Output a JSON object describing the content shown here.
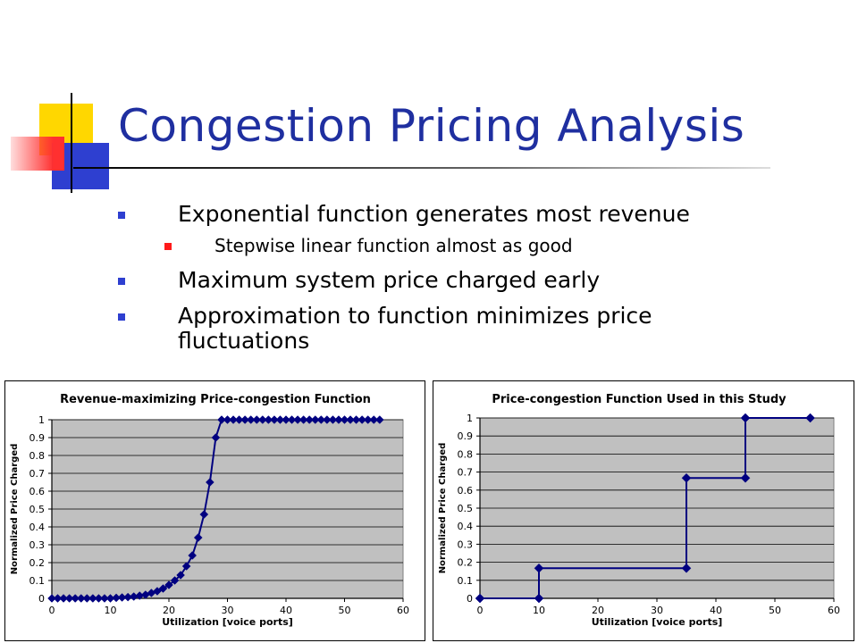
{
  "slide": {
    "title": "Congestion Pricing Analysis",
    "bullets": [
      {
        "level": 1,
        "text": "Exponential function generates most revenue"
      },
      {
        "level": 2,
        "text": "Stepwise linear function almost as good"
      },
      {
        "level": 1,
        "text": "Maximum system price charged early"
      },
      {
        "level": 1,
        "text": "Approximation to function minimizes price fluctuations"
      }
    ]
  },
  "colors": {
    "title": "#1f2fa0",
    "plot_area": "#c0c0c0",
    "series": "#000080",
    "bullet_level1": "#2e3fd0",
    "bullet_level2": "#ff1a1a"
  },
  "chart_data": [
    {
      "type": "line",
      "title": "Revenue-maximizing Price-congestion Function",
      "xlabel": "Utilization [voice ports]",
      "ylabel": "Normalized Price Charged",
      "xlim": [
        0,
        60
      ],
      "ylim": [
        0,
        1
      ],
      "xticks": [
        "0",
        "10",
        "20",
        "30",
        "40",
        "50",
        "60"
      ],
      "yticks": [
        "0",
        "0.1",
        "0.2",
        "0.3",
        "0.4",
        "0.5",
        "0.6",
        "0.7",
        "0.8",
        "0.9",
        "1"
      ],
      "grid": true,
      "legend": "none",
      "series": [
        {
          "x": [
            0,
            1,
            2,
            3,
            4,
            5,
            6,
            7,
            8,
            9,
            10,
            11,
            12,
            13,
            14,
            15,
            16,
            17,
            18,
            19,
            20,
            21,
            22,
            23,
            24,
            25,
            26,
            27,
            28,
            29,
            30,
            31,
            32,
            33,
            34,
            35,
            36,
            37,
            38,
            39,
            40,
            41,
            42,
            43,
            44,
            45,
            46,
            47,
            48,
            49,
            50,
            51,
            52,
            53,
            54,
            55,
            56
          ],
          "y": [
            0,
            0,
            0,
            0,
            0,
            0,
            0,
            0,
            0,
            0,
            0,
            0.003,
            0.005,
            0.007,
            0.01,
            0.015,
            0.02,
            0.03,
            0.04,
            0.055,
            0.075,
            0.1,
            0.13,
            0.18,
            0.24,
            0.34,
            0.47,
            0.65,
            0.9,
            1,
            1,
            1,
            1,
            1,
            1,
            1,
            1,
            1,
            1,
            1,
            1,
            1,
            1,
            1,
            1,
            1,
            1,
            1,
            1,
            1,
            1,
            1,
            1,
            1,
            1,
            1,
            1
          ]
        }
      ]
    },
    {
      "type": "line",
      "title": "Price-congestion Function Used in this Study",
      "xlabel": "Utilization [voice ports]",
      "ylabel": "Normalized Price Charged",
      "xlim": [
        0,
        60
      ],
      "ylim": [
        0,
        1
      ],
      "xticks": [
        "0",
        "10",
        "20",
        "30",
        "40",
        "50",
        "60"
      ],
      "yticks": [
        "0",
        "0.1",
        "0.2",
        "0.3",
        "0.4",
        "0.5",
        "0.6",
        "0.7",
        "0.8",
        "0.9",
        "1"
      ],
      "grid": true,
      "legend": "none",
      "series": [
        {
          "x": [
            0,
            10,
            10,
            35,
            35,
            45,
            45,
            56
          ],
          "y": [
            0,
            0,
            0.167,
            0.167,
            0.667,
            0.667,
            1,
            1
          ]
        }
      ]
    }
  ]
}
